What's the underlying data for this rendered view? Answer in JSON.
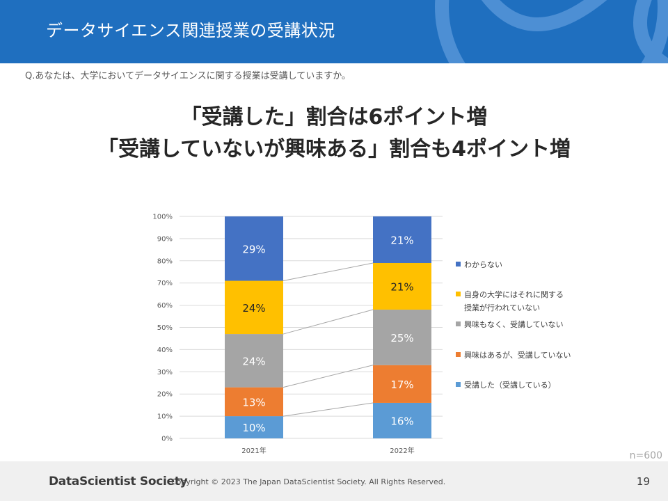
{
  "header": {
    "title": "データサイエンス関連授業の受講状況"
  },
  "question": "Q.あなたは、大学においてデータサイエンスに関する授業は受講していますか。",
  "headline": {
    "line1": "「受講した」割合は6ポイント増",
    "line2": "「受講していないが興味ある」割合も4ポイント増"
  },
  "sample_size": "n=600",
  "footer": {
    "logo": "DataScientist Society",
    "copyright": "Copyright © 2023  The Japan DataScientist Society. All Rights Reserved.",
    "page_number": "19"
  },
  "colors": {
    "header_bg": "#1f6fbf",
    "attended": "#5b9bd5",
    "interested": "#ed7d31",
    "not_interested": "#a5a5a5",
    "not_offered": "#ffc000",
    "unknown": "#4472c4"
  },
  "chart_data": {
    "type": "bar",
    "stacked": true,
    "categories": [
      "2021年",
      "2022年"
    ],
    "series": [
      {
        "name": "受講した（受講している）",
        "values": [
          10,
          16
        ],
        "labels": [
          "10%",
          "16%"
        ],
        "color": "#5b9bd5",
        "label_color": "#ffffff"
      },
      {
        "name": "興味はあるが、受講していない",
        "values": [
          13,
          17
        ],
        "labels": [
          "13%",
          "17%"
        ],
        "color": "#ed7d31",
        "label_color": "#ffffff"
      },
      {
        "name": "興味もなく、受講していない",
        "values": [
          24,
          25
        ],
        "labels": [
          "24%",
          "25%"
        ],
        "color": "#a5a5a5",
        "label_color": "#ffffff"
      },
      {
        "name": "自身の大学にはそれに関する授業が行われていない",
        "legend_lines": [
          "自身の大学にはそれに関する",
          "授業が行われていない"
        ],
        "values": [
          24,
          21
        ],
        "labels": [
          "24%",
          "21%"
        ],
        "color": "#ffc000",
        "label_color": "#262626"
      },
      {
        "name": "わからない",
        "values": [
          29,
          21
        ],
        "labels": [
          "29%",
          "21%"
        ],
        "color": "#4472c4",
        "label_color": "#ffffff"
      }
    ],
    "ylim": [
      0,
      100
    ],
    "yticks": [
      "0%",
      "10%",
      "20%",
      "30%",
      "40%",
      "50%",
      "60%",
      "70%",
      "80%",
      "90%",
      "100%"
    ],
    "legend": "right",
    "series_lines": true
  }
}
